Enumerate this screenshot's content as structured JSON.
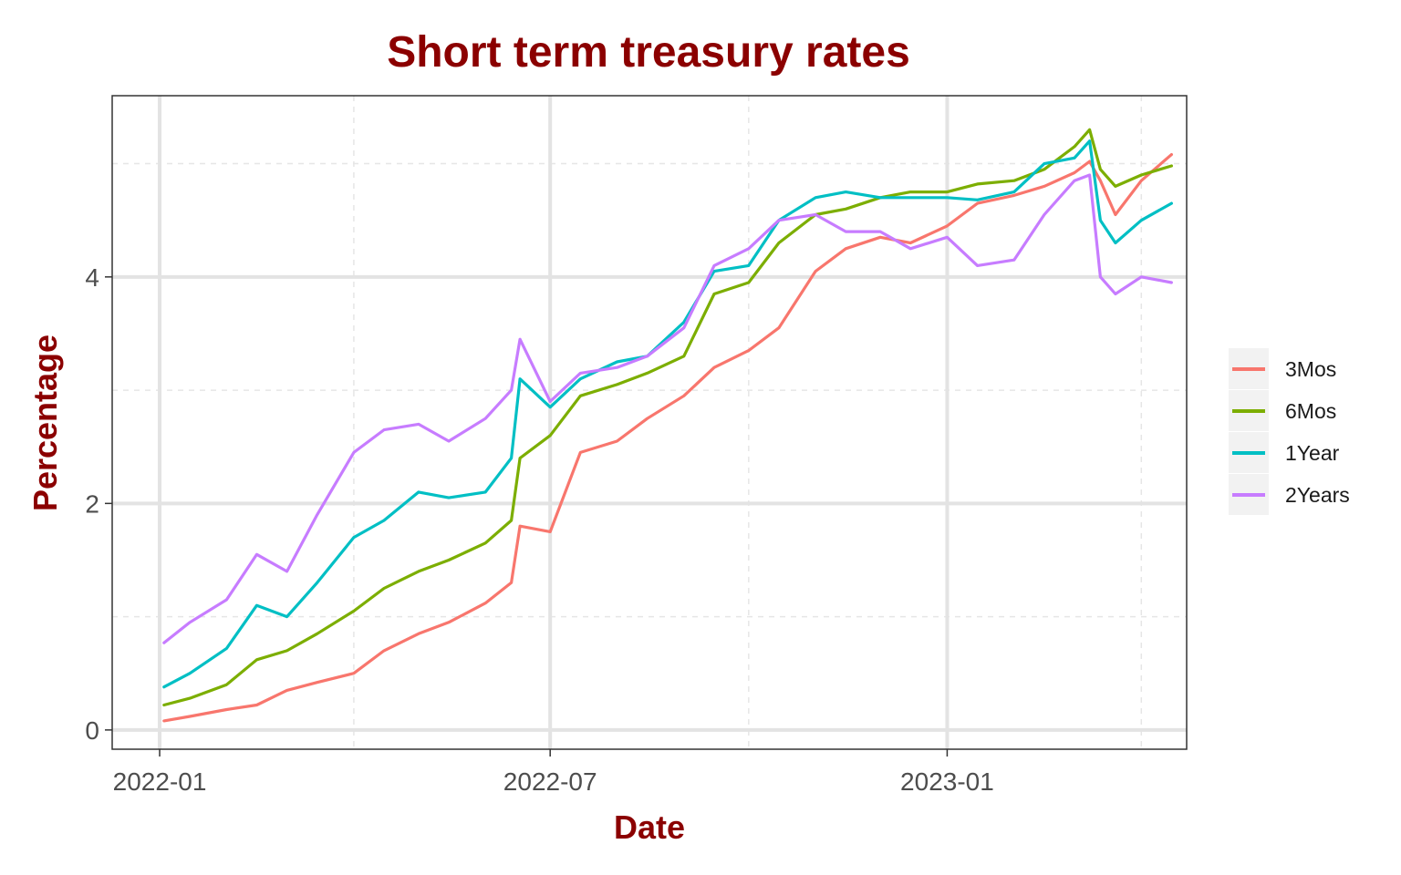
{
  "chart_data": {
    "type": "line",
    "title": "Short term treasury rates",
    "xlabel": "Date",
    "ylabel": "Percentage",
    "x_ticks": [
      "2022-01",
      "2022-07",
      "2023-01"
    ],
    "y_ticks": [
      "0",
      "2",
      "4"
    ],
    "xlim": [
      "2021-12-10",
      "2023-04-22"
    ],
    "ylim": [
      -0.17,
      5.6
    ],
    "grid": true,
    "legend_position": "right",
    "x": [
      "2022-01-03",
      "2022-01-15",
      "2022-02-01",
      "2022-02-15",
      "2022-03-01",
      "2022-03-15",
      "2022-04-01",
      "2022-04-15",
      "2022-05-01",
      "2022-05-15",
      "2022-06-01",
      "2022-06-13",
      "2022-06-17",
      "2022-07-01",
      "2022-07-15",
      "2022-08-01",
      "2022-08-15",
      "2022-09-01",
      "2022-09-15",
      "2022-10-01",
      "2022-10-15",
      "2022-11-01",
      "2022-11-15",
      "2022-12-01",
      "2022-12-15",
      "2023-01-01",
      "2023-01-15",
      "2023-02-01",
      "2023-02-15",
      "2023-03-01",
      "2023-03-08",
      "2023-03-13",
      "2023-03-20",
      "2023-04-01",
      "2023-04-15"
    ],
    "series": [
      {
        "name": "3Mos",
        "color": "#F8766D",
        "values": [
          0.08,
          0.12,
          0.18,
          0.22,
          0.35,
          0.42,
          0.5,
          0.7,
          0.85,
          0.95,
          1.12,
          1.3,
          1.8,
          1.75,
          2.45,
          2.55,
          2.75,
          2.95,
          3.2,
          3.35,
          3.55,
          4.05,
          4.25,
          4.35,
          4.3,
          4.45,
          4.65,
          4.72,
          4.8,
          4.92,
          5.02,
          4.85,
          4.55,
          4.85,
          5.08
        ]
      },
      {
        "name": "6Mos",
        "color": "#7CAE00",
        "values": [
          0.22,
          0.28,
          0.4,
          0.62,
          0.7,
          0.85,
          1.05,
          1.25,
          1.4,
          1.5,
          1.65,
          1.85,
          2.4,
          2.6,
          2.95,
          3.05,
          3.15,
          3.3,
          3.85,
          3.95,
          4.3,
          4.55,
          4.6,
          4.7,
          4.75,
          4.75,
          4.82,
          4.85,
          4.95,
          5.15,
          5.3,
          4.95,
          4.8,
          4.9,
          4.98
        ]
      },
      {
        "name": "1Year",
        "color": "#00BFC4",
        "values": [
          0.38,
          0.5,
          0.72,
          1.1,
          1.0,
          1.3,
          1.7,
          1.85,
          2.1,
          2.05,
          2.1,
          2.4,
          3.1,
          2.85,
          3.1,
          3.25,
          3.3,
          3.6,
          4.05,
          4.1,
          4.5,
          4.7,
          4.75,
          4.7,
          4.7,
          4.7,
          4.68,
          4.75,
          5.0,
          5.05,
          5.2,
          4.5,
          4.3,
          4.5,
          4.65
        ]
      },
      {
        "name": "2Years",
        "color": "#C77CFF",
        "values": [
          0.77,
          0.95,
          1.15,
          1.55,
          1.4,
          1.9,
          2.45,
          2.65,
          2.7,
          2.55,
          2.75,
          3.0,
          3.45,
          2.9,
          3.15,
          3.2,
          3.3,
          3.55,
          4.1,
          4.25,
          4.5,
          4.55,
          4.4,
          4.4,
          4.25,
          4.35,
          4.1,
          4.15,
          4.55,
          4.85,
          4.9,
          4.0,
          3.85,
          4.0,
          3.95
        ]
      }
    ]
  }
}
